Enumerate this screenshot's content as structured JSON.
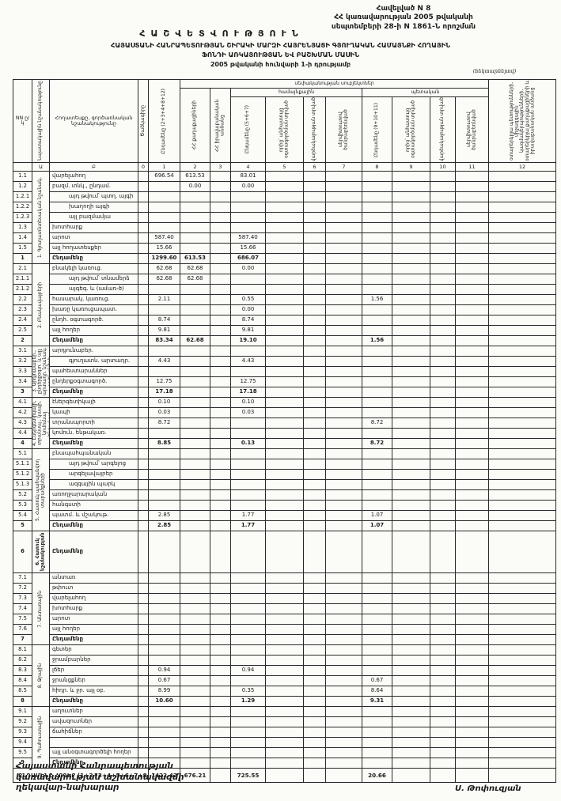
{
  "doc": {
    "appendix_line1": "Հավելված N 8",
    "appendix_line2": "ՀՀ կառավարության 2005 թվականի",
    "appendix_line3": "սեպտեմբերի 28-ի N 1861-Ն որոշման",
    "title": "ՀԱՇՎԵՏՎՈՒԹՅՈՒՆ",
    "subtitle1": "ՀԱՅԱՍՏԱՆԻ ՀԱՆՐԱՊԵՏՈՒԹՅԱՆ ՇԻՐԱԿԻ ՄԱՐԶԻ ՀԱՅՐԵՆՅԱՑԻ ԳՅՈՒՂԱԿԱՆ ՀԱՄԱՅՆՔԻ ՀՈՂԱՅԻՆ",
    "subtitle2": "ՖՈՆԴԻ ԱՌԿԱՅՈՒԹՅԱՆ ԵՎ ԲԱՇԽՄԱՆ ՄԱՍԻՆ",
    "date_line": "2005 թվականի հունվարի 1-ի դրությամբ",
    "unit_note": "(հեկտարներով)"
  },
  "table": {
    "head": {
      "nn": "NN ը/կ",
      "designation": "Նպատակային նշանակությունը",
      "landtype": "Հողատեսքը, գործառնական նշանակությունը",
      "code": "Ծածկագիրը",
      "total": "Ընդամենը (2+3+4+8+12)",
      "ownership_group": "սեփականության սուբյեկտներ",
      "citizens": "ՀՀ քաղաքացիների",
      "legal": "ՀՀ իրավաբանական անձանց",
      "community_group": "համայնքային",
      "state_group": "պետական",
      "community_total": "Ընդամենը (5+6+7)",
      "community_free": "որից՝ անհատույց օգտագործման տրված",
      "community_lease": "վարձակալության տրված",
      "community_servitude": "սերվիտուտով ծանրաբեռնված",
      "state_total": "Ընդամենը (9+10+11)",
      "state_free": "որից՝ անհատույց օգտագործման տրված",
      "state_lease": "վարձակալության տրված",
      "state_servitude": "սերվիտուտով ծանրաբեռնված",
      "foreign": "օտարերկրյա պետությունների, միջազգային կազմակերպությունների, օտարերկրյա քաղաքացիների և իրավաբանական անձանց",
      "letters": [
        "",
        "Ա",
        "Բ",
        "0",
        "1",
        "2",
        "3",
        "4",
        "5",
        "6",
        "7",
        "8",
        "9",
        "10",
        "11",
        "12"
      ]
    },
    "sections": [
      {
        "name": "1. Գյուղատնտեսական նշանակ.",
        "rows": [
          {
            "nn": "1.1",
            "label": "վարելահող",
            "c1": "696.54",
            "c2": "613.53",
            "c4": "83.01"
          },
          {
            "nn": "1.2",
            "label": "բազմ. տնկ., ընդամ.",
            "c2": "0.00",
            "c4": "0.00"
          },
          {
            "nn": "1.2.1",
            "label": "այդ թվում՝ պտղ. այգի",
            "indent": true
          },
          {
            "nn": "1.2.2",
            "label": "խաղողի այգի",
            "indent": true
          },
          {
            "nn": "1.2.3",
            "label": "այլ բազմամյա",
            "indent": true
          },
          {
            "nn": "1.3",
            "label": "խոտհարք"
          },
          {
            "nn": "1.4",
            "label": "արոտ",
            "c1": "587.40",
            "c4": "587.40"
          },
          {
            "nn": "1.5",
            "label": "այլ հողատեսքեր",
            "c1": "15.66",
            "c4": "15.66"
          },
          {
            "nn": "1",
            "label": "Ընդամենը",
            "total": true,
            "c1": "1299.60",
            "c2": "613.53",
            "c4": "686.07"
          }
        ]
      },
      {
        "name": "2. Բնակավայրերի",
        "rows": [
          {
            "nn": "2.1",
            "label": "բնակելի կառուց.",
            "c1": "62.68",
            "c2": "62.68",
            "c4": "0.00"
          },
          {
            "nn": "2.1.1",
            "label": "այդ թվում՝ տնամերձ",
            "indent": true,
            "c1": "62.68",
            "c2": "62.68"
          },
          {
            "nn": "2.1.2",
            "label": "այգեգ. և (ամառ-ծ)",
            "indent": true
          },
          {
            "nn": "2.2",
            "label": "հասարակ. կառուց.",
            "c1": "2.11",
            "c4": "0.55",
            "c8": "1.56"
          },
          {
            "nn": "2.3",
            "label": "խառը կառուցապատ.",
            "c4": "0.00"
          },
          {
            "nn": "2.4",
            "label": "ընդհ. օգտագործ.",
            "c1": "8.74",
            "c4": "8.74"
          },
          {
            "nn": "2.5",
            "label": "այլ հողեր",
            "c1": "9.81",
            "c4": "9.81"
          },
          {
            "nn": "2",
            "label": "Ընդամենը",
            "total": true,
            "c1": "83.34",
            "c2": "62.68",
            "c4": "19.10",
            "c8": "1.56"
          }
        ]
      },
      {
        "name": "3. Արդյունաբեր., ընդերքօգտ. և այլ արտադր. նշանակ. օբյեկտների",
        "rows": [
          {
            "nn": "3.1",
            "label": "արդյունաբեր."
          },
          {
            "nn": "3.2",
            "label": "գյուղատն. արտադր.",
            "indent": true,
            "c1": "4.43",
            "c4": "4.43"
          },
          {
            "nn": "3.3",
            "label": "պահեստարաններ"
          },
          {
            "nn": "3.4",
            "label": "ընդերքօգտագործ.",
            "c1": "12.75",
            "c4": "12.75"
          },
          {
            "nn": "3",
            "label": "Ընդամենը",
            "total": true,
            "c1": "17.18",
            "c4": "17.18"
          }
        ]
      },
      {
        "name": "4. Էներգետիկայի, տրանսպ., կապի, կոմունալ ենթակառ. օբյեկտների",
        "rows": [
          {
            "nn": "4.1",
            "label": "էներգետիկայի",
            "c1": "0.10",
            "c4": "0.10"
          },
          {
            "nn": "4.2",
            "label": "կապի",
            "c1": "0.03",
            "c4": "0.03"
          },
          {
            "nn": "4.3",
            "label": "տրանսպորտի",
            "c1": "8.72",
            "c8": "8.72"
          },
          {
            "nn": "4.4",
            "label": "կոմուն. ենթակառ."
          },
          {
            "nn": "4",
            "label": "Ընդամենը",
            "total": true,
            "c1": "8.85",
            "c4": "0.13",
            "c8": "8.72"
          }
        ]
      },
      {
        "name": "5. Հատուկ պահպանվող տարածքների",
        "rows": [
          {
            "nn": "5.1",
            "label": "բնապահպանական"
          },
          {
            "nn": "5.1.1",
            "label": "այդ թվում՝ արգելոց",
            "indent": true
          },
          {
            "nn": "5.1.2",
            "label": "արգելավայրեր",
            "indent": true
          },
          {
            "nn": "5.1.3",
            "label": "ազգային պարկ",
            "indent": true
          },
          {
            "nn": "5.2",
            "label": "առողջարարական"
          },
          {
            "nn": "5.3",
            "label": "հանգստի"
          },
          {
            "nn": "5.4",
            "label": "պատմ. և մշակութ.",
            "c1": "2.85",
            "c4": "1.77",
            "c8": "1.07"
          },
          {
            "nn": "5",
            "label": "Ընդամենը",
            "total": true,
            "c1": "2.85",
            "c4": "1.77",
            "c8": "1.07"
          }
        ]
      },
      {
        "name": "6. Հատուկ նշանակության",
        "tall": true,
        "rows": [
          {
            "nn": "6",
            "label": "Ընդամենը",
            "total": true
          }
        ]
      },
      {
        "name": "7. Անտառային",
        "rows": [
          {
            "nn": "7.1",
            "label": "անտառ"
          },
          {
            "nn": "7.2",
            "label": "թփուտ"
          },
          {
            "nn": "7.3",
            "label": "վարելահող"
          },
          {
            "nn": "7.4",
            "label": "խոտհարք"
          },
          {
            "nn": "7.5",
            "label": "արոտ"
          },
          {
            "nn": "7.6",
            "label": "այլ հողեր"
          },
          {
            "nn": "7",
            "label": "Ընդամենը",
            "total": true
          }
        ]
      },
      {
        "name": "8. Ջրային",
        "rows": [
          {
            "nn": "8.1",
            "label": "գետեր"
          },
          {
            "nn": "8.2",
            "label": "ջրամբարներ"
          },
          {
            "nn": "8.3",
            "label": "լճեր",
            "c1": "0.94",
            "c4": "0.94"
          },
          {
            "nn": "8.4",
            "label": "ջրանցքներ",
            "c1": "0.67",
            "c8": "0.67"
          },
          {
            "nn": "8.5",
            "label": "հիդր. և ջր. այլ օբ.",
            "c1": "8.99",
            "c4": "0.35",
            "c8": "8.64"
          },
          {
            "nn": "8",
            "label": "Ընդամենը",
            "total": true,
            "c1": "10.60",
            "c4": "1.29",
            "c8": "9.31"
          }
        ]
      },
      {
        "name": "9. Պահուստային",
        "rows": [
          {
            "nn": "9.1",
            "label": "աղուտներ"
          },
          {
            "nn": "9.2",
            "label": "ավազուտներ"
          },
          {
            "nn": "9.3",
            "label": "ճահիճներ"
          },
          {
            "nn": "9.4",
            "label": ""
          },
          {
            "nn": "9.5",
            "label": "այլ անօգտագործելի հողեր"
          },
          {
            "nn": "9",
            "label": "Ընդամենը",
            "total": true
          }
        ]
      }
    ],
    "grand_total": {
      "label": "ԸՆԴԱՄԵՆԸ ՀՈՂԵՐ (1+2+3+4+5+6+7+8+9)",
      "c1": "1422.42",
      "c2": "676.21",
      "c4": "725.55",
      "c8": "20.66"
    }
  },
  "footer": {
    "left_line1": "Հայաստանի Հանրապետության",
    "left_line2": "կառավարության աշխատակազմի",
    "left_line3": "ղեկավար-նախարար",
    "signature": "Ս. Թոփուզյան"
  }
}
